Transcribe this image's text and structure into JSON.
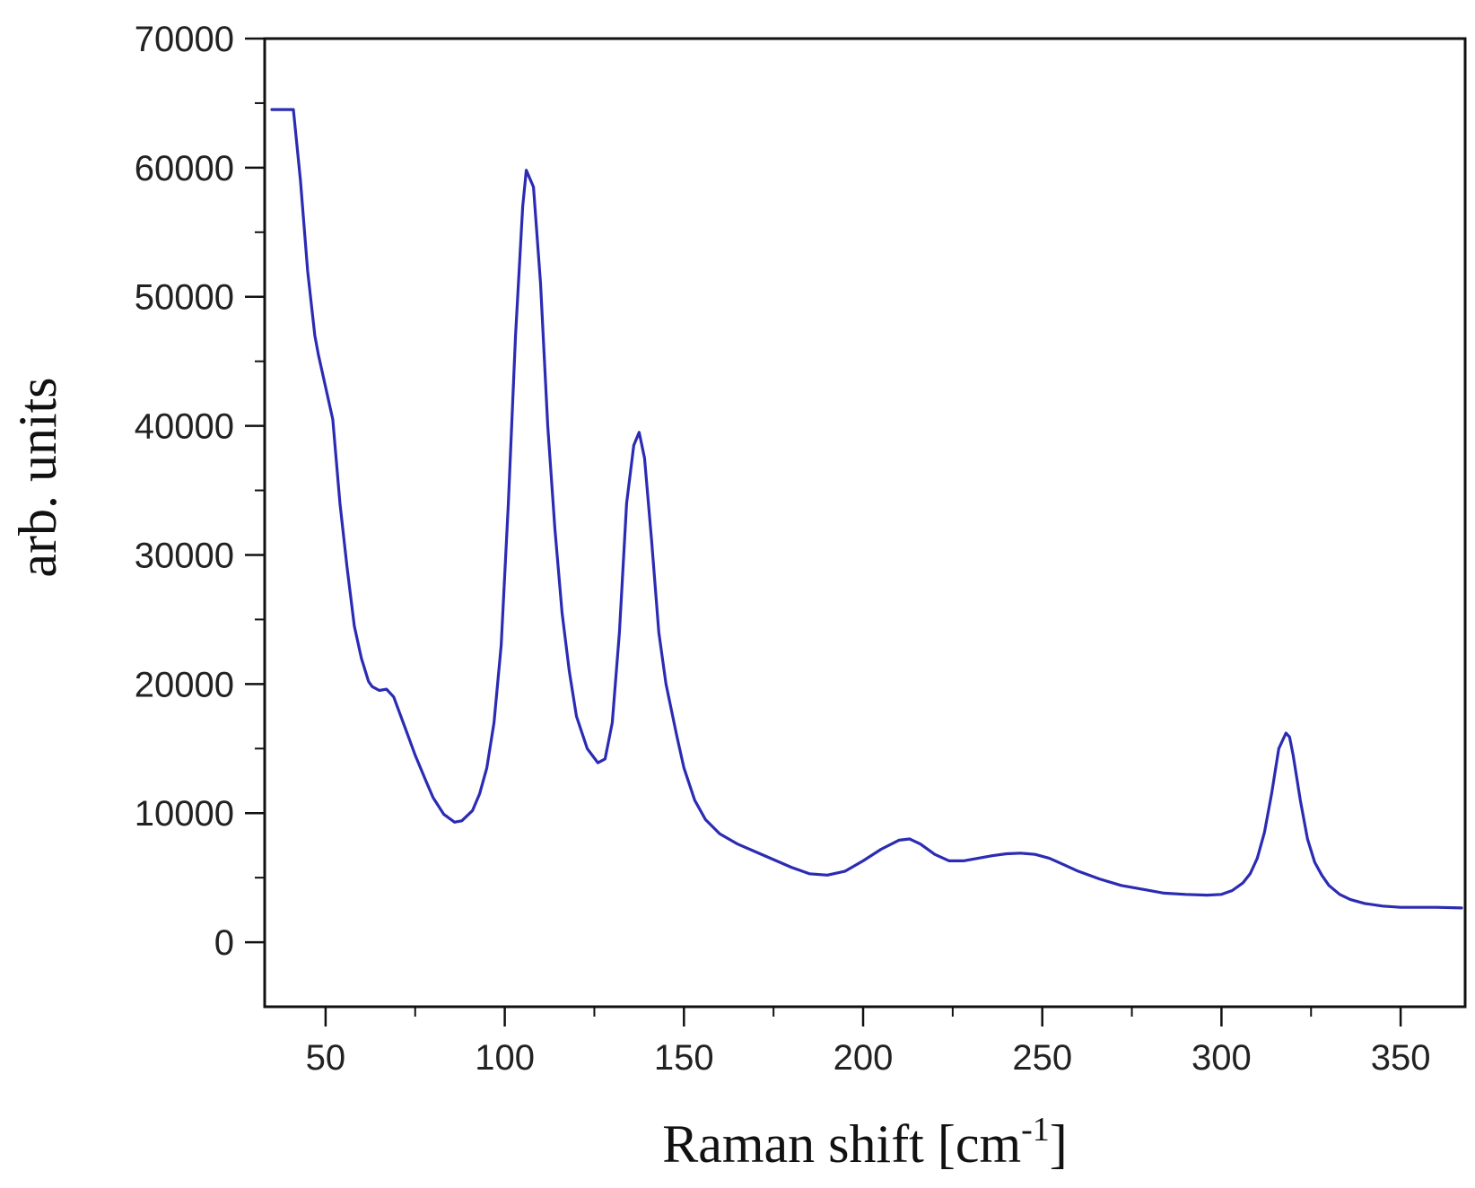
{
  "chart_data": {
    "type": "line",
    "title": "",
    "xlabel": "Raman shift [cm",
    "xlabel_sup": "-1",
    "xlabel_suffix": "]",
    "ylabel": "arb. units",
    "xlim": [
      33,
      368
    ],
    "ylim": [
      -5000,
      70000
    ],
    "x_ticks": [
      50,
      100,
      150,
      200,
      250,
      300,
      350
    ],
    "y_ticks": [
      0,
      10000,
      20000,
      30000,
      40000,
      50000,
      60000,
      70000
    ],
    "x_tick_labels": [
      "50",
      "100",
      "150",
      "200",
      "250",
      "300",
      "350"
    ],
    "y_tick_labels": [
      "0",
      "10000",
      "20000",
      "30000",
      "40000",
      "50000",
      "60000",
      "70000"
    ],
    "grid": false,
    "line_color": "#2b2bb3",
    "series": [
      {
        "x": [
          35,
          40,
          41,
          43,
          45,
          47,
          48,
          50,
          52,
          54,
          56,
          58,
          60,
          62,
          63,
          65,
          67,
          69,
          71,
          73,
          75,
          78,
          80,
          83,
          86,
          88,
          91,
          93,
          95,
          97,
          99,
          101,
          103,
          105,
          106,
          108,
          110,
          112,
          114,
          116,
          118,
          120,
          123,
          126,
          128,
          130,
          132,
          134,
          136,
          137.5,
          139,
          141,
          143,
          145,
          148,
          150,
          153,
          156,
          160,
          165,
          170,
          175,
          180,
          185,
          190,
          195,
          200,
          205,
          210,
          213,
          216,
          220,
          224,
          228,
          232,
          236,
          240,
          244,
          248,
          252,
          256,
          260,
          266,
          272,
          278,
          284,
          290,
          296,
          300,
          303,
          306,
          308,
          310,
          312,
          314,
          316,
          318,
          319,
          320,
          322,
          324,
          326,
          328,
          330,
          333,
          336,
          340,
          345,
          350,
          355,
          360,
          367
        ],
        "y": [
          64500,
          64500,
          64500,
          59000,
          52000,
          47000,
          45500,
          43000,
          40500,
          34000,
          29000,
          24500,
          22000,
          20200,
          19800,
          19500,
          19600,
          19000,
          17500,
          16000,
          14500,
          12500,
          11200,
          9900,
          9300,
          9400,
          10200,
          11500,
          13500,
          17000,
          23000,
          34000,
          47000,
          57000,
          59800,
          58500,
          51000,
          40000,
          32000,
          25500,
          21000,
          17500,
          15000,
          13900,
          14200,
          17000,
          24000,
          34000,
          38500,
          39500,
          37500,
          31000,
          24000,
          20000,
          16000,
          13500,
          11000,
          9500,
          8400,
          7600,
          7000,
          6400,
          5800,
          5300,
          5200,
          5500,
          6300,
          7200,
          7900,
          8000,
          7600,
          6800,
          6300,
          6300,
          6500,
          6700,
          6850,
          6900,
          6800,
          6500,
          6000,
          5500,
          4900,
          4400,
          4100,
          3800,
          3700,
          3650,
          3700,
          4000,
          4600,
          5300,
          6500,
          8500,
          11500,
          15000,
          16200,
          15900,
          14500,
          11000,
          8000,
          6200,
          5200,
          4400,
          3700,
          3300,
          3000,
          2800,
          2700,
          2700,
          2700,
          2650
        ]
      }
    ]
  }
}
